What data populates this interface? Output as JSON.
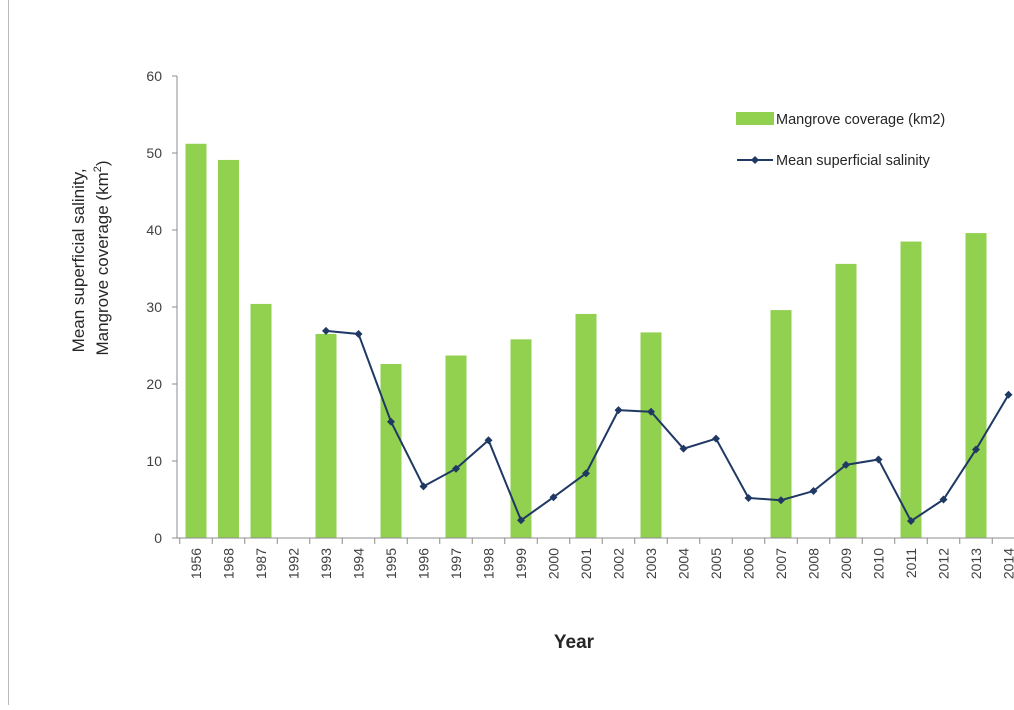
{
  "chart_data": {
    "type": "bar",
    "title": "",
    "xlabel": "Year",
    "ylabel_line1": "Mean superficial salinity,",
    "ylabel_line2": "Mangrove coverage (km",
    "ylabel_sup": "2",
    "ylabel_end": ")",
    "ylim": [
      0,
      60
    ],
    "yticks": [
      "0",
      "10",
      "20",
      "30",
      "40",
      "50",
      "60"
    ],
    "grid": false,
    "legend_position": "top-right",
    "categories": [
      "1956",
      "1968",
      "1987",
      "1992",
      "1993",
      "1994",
      "1995",
      "1996",
      "1997",
      "1998",
      "1999",
      "2000",
      "2001",
      "2002",
      "2003",
      "2004",
      "2005",
      "2006",
      "2007",
      "2008",
      "2009",
      "2010",
      "2011",
      "2012",
      "2013",
      "2014"
    ],
    "series": [
      {
        "name": "Mangrove coverage (km2)",
        "kind": "bar",
        "color": "#92d050",
        "values": [
          51.2,
          49.1,
          30.4,
          null,
          26.5,
          null,
          22.6,
          null,
          23.7,
          null,
          25.8,
          null,
          29.1,
          null,
          26.7,
          null,
          null,
          null,
          29.6,
          null,
          35.6,
          null,
          38.5,
          null,
          39.6,
          null
        ]
      },
      {
        "name": "Mean superficial salinity",
        "kind": "line",
        "color": "#1f3864",
        "values": [
          null,
          null,
          null,
          null,
          26.9,
          26.5,
          15.1,
          6.7,
          9.0,
          12.7,
          2.3,
          5.3,
          8.4,
          16.6,
          16.4,
          11.6,
          12.9,
          5.2,
          4.9,
          6.1,
          9.5,
          10.2,
          2.2,
          5.0,
          11.5,
          18.6
        ]
      }
    ]
  }
}
